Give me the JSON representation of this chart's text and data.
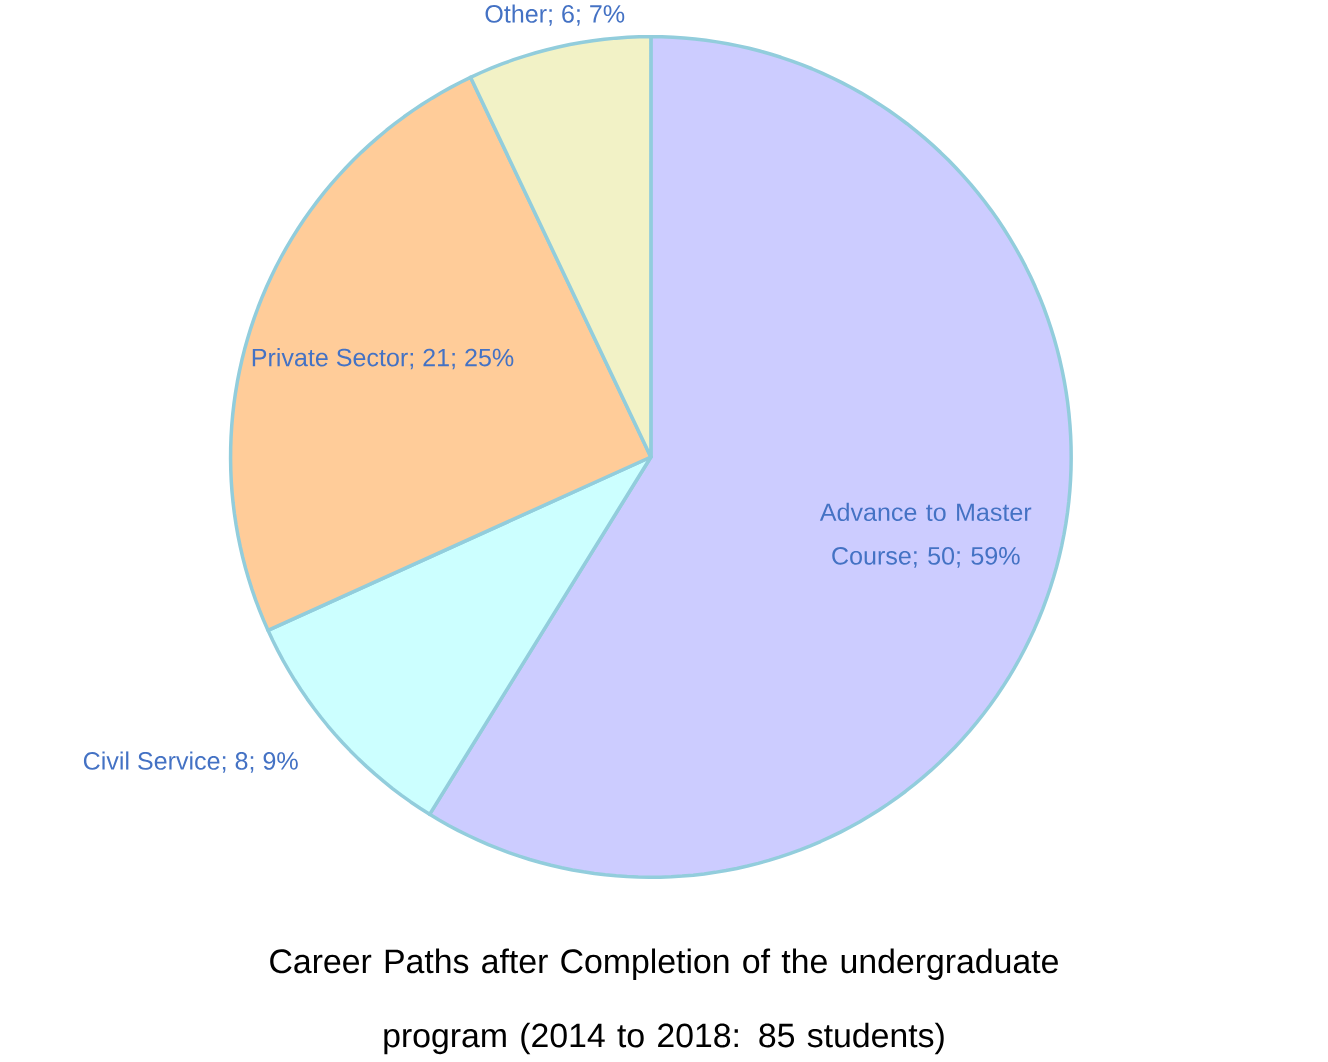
{
  "chart_data": {
    "type": "pie",
    "title": "Career Paths after Completion of the undergraduate program  (2014 to 2018: 85 students)",
    "categories": [
      "Advance to Master Course",
      "Civil Service",
      "Private Sector",
      "Other"
    ],
    "values": [
      50,
      8,
      21,
      6
    ],
    "colors": [
      "#ccccff",
      "#ccffff",
      "#ffcc99",
      "#f2f2c6"
    ],
    "value_labels": [
      "; 50; 59%",
      "; 8; 9%",
      "; 21; 25%",
      "; 6; 7%"
    ]
  }
}
